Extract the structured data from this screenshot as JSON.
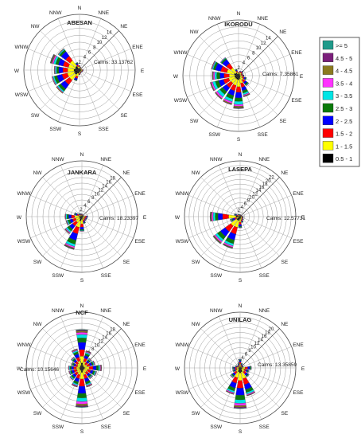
{
  "direction_labels": [
    "N",
    "NNE",
    "NE",
    "ENE",
    "E",
    "ESE",
    "SE",
    "SSE",
    "S",
    "SSW",
    "SW",
    "WSW",
    "W",
    "WNW",
    "NW",
    "NNW"
  ],
  "legend": {
    "bins": [
      ">= 5",
      "4.5 - 5",
      "4 - 4.5",
      "3.5 - 4",
      "3 - 3.5",
      "2.5 - 3",
      "2 - 2.5",
      "1.5 - 2",
      "1 - 1.5",
      "0.5 - 1"
    ],
    "colors": [
      "#1f9a8a",
      "#7a1f7a",
      "#8b7a1f",
      "#ff33ff",
      "#00e5e5",
      "#0a7a0a",
      "#0000ff",
      "#ff0000",
      "#ffff00",
      "#000000"
    ]
  },
  "chart_data": [
    {
      "type": "windrose",
      "title": "ABESAN",
      "calms_label": "Calms: 33.13762",
      "radial_ticks": [
        "2",
        "4",
        "6",
        "8",
        "10",
        "12",
        "14"
      ],
      "rmax": 14,
      "petals": {
        "N": [
          0,
          0,
          0,
          0,
          0,
          0,
          0.1,
          0.2,
          0.4,
          0.6
        ],
        "NNE": [
          0,
          0,
          0,
          0,
          0,
          0,
          0.1,
          0.1,
          0.3,
          0.4
        ],
        "NE": [
          0,
          0,
          0,
          0,
          0,
          0,
          0,
          0.1,
          0.2,
          0.3
        ],
        "ENE": [
          0,
          0,
          0,
          0,
          0,
          0,
          0,
          0.1,
          0.2,
          0.3
        ],
        "E": [
          0,
          0,
          0,
          0,
          0,
          0,
          0.1,
          0.2,
          0.3,
          0.5
        ],
        "ESE": [
          0,
          0,
          0,
          0,
          0,
          0,
          0.1,
          0.2,
          0.3,
          0.4
        ],
        "SE": [
          0,
          0,
          0,
          0,
          0,
          0,
          0.1,
          0.1,
          0.2,
          0.4
        ],
        "SSE": [
          0,
          0,
          0,
          0,
          0,
          0,
          0.1,
          0.2,
          0.3,
          0.4
        ],
        "S": [
          0,
          0,
          0,
          0,
          0,
          0,
          0.1,
          0.3,
          0.4,
          0.6
        ],
        "SSW": [
          0,
          0,
          0,
          0,
          0,
          0.2,
          0.5,
          0.6,
          0.9,
          1.0
        ],
        "SW": [
          0,
          0,
          0.2,
          0.2,
          0.4,
          0.8,
          1.5,
          1.6,
          2.0,
          1.6
        ],
        "WSW": [
          0,
          0,
          0.1,
          0.2,
          0.4,
          0.8,
          1.5,
          1.6,
          2.0,
          1.6
        ],
        "W": [
          0,
          0,
          0.1,
          0.2,
          0.4,
          0.6,
          1.2,
          1.4,
          1.8,
          1.6
        ],
        "WNW": [
          0.1,
          0.2,
          0.3,
          0.4,
          0.6,
          0.8,
          1.4,
          1.6,
          2.0,
          1.3
        ],
        "NW": [
          0,
          0,
          0.1,
          0.1,
          0.3,
          0.6,
          1.6,
          1.6,
          2.0,
          1.4
        ],
        "NNW": [
          0,
          0,
          0,
          0,
          0.1,
          0.2,
          0.4,
          0.5,
          0.6,
          0.5
        ]
      }
    },
    {
      "type": "windrose",
      "title": "IKORODU",
      "calms_label": "Calms: 7.35861",
      "radial_ticks": [
        "2",
        "4",
        "6",
        "8",
        "10",
        "12",
        "14"
      ],
      "rmax": 14,
      "petals": {
        "N": [
          0,
          0,
          0,
          0,
          0,
          0,
          0.1,
          0.2,
          0.3,
          0.4
        ],
        "NNE": [
          0,
          0,
          0,
          0,
          0,
          0,
          0.1,
          0.3,
          0.4,
          0.6
        ],
        "NE": [
          0,
          0,
          0,
          0,
          0,
          0.1,
          0.2,
          0.4,
          0.5,
          0.5
        ],
        "ENE": [
          0,
          0,
          0,
          0,
          0,
          0.1,
          0.1,
          0.3,
          0.4,
          0.4
        ],
        "E": [
          0,
          0,
          0,
          0,
          0,
          0.1,
          0.2,
          0.4,
          0.5,
          0.4
        ],
        "ESE": [
          0,
          0,
          0,
          0,
          0.1,
          0.2,
          0.4,
          0.5,
          0.7,
          0.5
        ],
        "SE": [
          0,
          0,
          0,
          0.1,
          0.2,
          0.4,
          0.6,
          0.8,
          1.0,
          0.6
        ],
        "SSE": [
          0,
          0.1,
          0.2,
          0.3,
          0.5,
          0.7,
          1.0,
          1.2,
          1.4,
          0.9
        ],
        "S": [
          0.1,
          0.2,
          0.4,
          0.5,
          0.9,
          1.0,
          1.6,
          1.6,
          2.0,
          1.2
        ],
        "SSW": [
          0,
          0.1,
          0.3,
          0.5,
          0.8,
          1.0,
          1.4,
          1.6,
          1.8,
          1.1
        ],
        "SW": [
          0,
          0.1,
          0.2,
          0.5,
          0.9,
          1.0,
          1.4,
          1.6,
          1.6,
          1.1
        ],
        "WSW": [
          0,
          0.1,
          0.2,
          0.4,
          0.8,
          1.0,
          1.4,
          1.6,
          1.8,
          1.1
        ],
        "W": [
          0,
          0.1,
          0.2,
          0.4,
          0.6,
          0.9,
          1.2,
          1.5,
          1.6,
          1.1
        ],
        "WNW": [
          0,
          0,
          0.1,
          0.2,
          0.3,
          0.6,
          1.6,
          1.8,
          2.2,
          1.3
        ],
        "NW": [
          0,
          0,
          0,
          0.1,
          0.2,
          0.4,
          1.4,
          1.6,
          1.8,
          1.0
        ],
        "NNW": [
          0,
          0,
          0,
          0,
          0,
          0.2,
          0.3,
          0.4,
          0.5,
          0.5
        ]
      }
    },
    {
      "type": "windrose",
      "title": "JANKARA",
      "calms_label": "Calms: 18.23397",
      "radial_ticks": [
        "2",
        "4",
        "6",
        "8",
        "10",
        "12",
        "14",
        "16",
        "18"
      ],
      "rmax": 18,
      "petals": {
        "N": [
          0,
          0,
          0,
          0,
          0,
          0,
          0.1,
          0.2,
          0.3,
          0.4
        ],
        "NNE": [
          0,
          0,
          0,
          0,
          0,
          0,
          0.1,
          0.2,
          0.2,
          0.3
        ],
        "NE": [
          0,
          0,
          0,
          0,
          0,
          0,
          0.1,
          0.1,
          0.2,
          0.3
        ],
        "ENE": [
          0,
          0,
          0,
          0,
          0,
          0,
          0.1,
          0.1,
          0.2,
          0.3
        ],
        "E": [
          0,
          0,
          0,
          0,
          0,
          0.1,
          0.3,
          0.6,
          0.7,
          0.4
        ],
        "ESE": [
          0,
          0,
          0,
          0,
          0,
          0.1,
          0.3,
          0.5,
          0.6,
          0.4
        ],
        "SE": [
          0,
          0,
          0,
          0,
          0,
          0.1,
          0.3,
          0.5,
          0.6,
          0.4
        ],
        "SSE": [
          0,
          0,
          0,
          0,
          0.1,
          0.2,
          0.4,
          0.6,
          0.8,
          0.5
        ],
        "S": [
          0,
          0,
          0,
          0.1,
          0.2,
          0.4,
          0.8,
          1.2,
          1.6,
          1.0
        ],
        "SSW": [
          0.1,
          0.2,
          0.3,
          0.5,
          0.9,
          1.4,
          2.4,
          2.4,
          2.4,
          1.6
        ],
        "SW": [
          0,
          0.1,
          0.2,
          0.3,
          0.6,
          0.9,
          1.4,
          1.6,
          1.6,
          1.0
        ],
        "WSW": [
          0,
          0,
          0.1,
          0.2,
          0.4,
          0.7,
          1.0,
          1.2,
          1.4,
          0.9
        ],
        "W": [
          0,
          0,
          0.1,
          0.2,
          0.4,
          0.6,
          1.0,
          1.2,
          1.6,
          1.0
        ],
        "WNW": [
          0,
          0,
          0,
          0.1,
          0.2,
          0.3,
          0.5,
          0.6,
          0.7,
          0.5
        ],
        "NW": [
          0,
          0,
          0,
          0,
          0.1,
          0.2,
          0.3,
          0.3,
          0.4,
          0.3
        ],
        "NNW": [
          0,
          0,
          0,
          0,
          0,
          0.1,
          0.2,
          0.2,
          0.3,
          0.3
        ]
      }
    },
    {
      "type": "windrose",
      "title": "LASEPA",
      "calms_label": "Calms: 12.57731",
      "radial_ticks": [
        "2",
        "4",
        "6",
        "8",
        "10",
        "12",
        "14",
        "16",
        "18",
        "20",
        "22"
      ],
      "rmax": 22,
      "petals": {
        "N": [
          0,
          0,
          0,
          0,
          0,
          0,
          0.1,
          0.2,
          0.3,
          0.3
        ],
        "NNE": [
          0,
          0,
          0,
          0,
          0,
          0,
          0.1,
          0.2,
          0.2,
          0.3
        ],
        "NE": [
          0,
          0,
          0,
          0,
          0,
          0,
          0.1,
          0.1,
          0.2,
          0.3
        ],
        "ENE": [
          0,
          0,
          0,
          0,
          0,
          0,
          0.1,
          0.2,
          0.2,
          0.3
        ],
        "E": [
          0,
          0,
          0,
          0,
          0,
          0.1,
          0.2,
          0.3,
          0.4,
          0.4
        ],
        "ESE": [
          0,
          0,
          0,
          0,
          0,
          0.1,
          0.2,
          0.3,
          0.4,
          0.4
        ],
        "SE": [
          0,
          0,
          0,
          0,
          0,
          0.1,
          0.3,
          0.4,
          0.5,
          0.5
        ],
        "SSE": [
          0,
          0,
          0,
          0,
          0.1,
          0.2,
          0.4,
          0.6,
          0.8,
          0.6
        ],
        "S": [
          0,
          0,
          0,
          0.1,
          0.2,
          0.4,
          0.8,
          1.0,
          1.4,
          1.0
        ],
        "SSW": [
          0.1,
          0.2,
          0.3,
          0.6,
          1.0,
          1.6,
          2.6,
          3.0,
          3.0,
          1.8
        ],
        "SW": [
          0.1,
          0.2,
          0.4,
          0.6,
          1.0,
          1.6,
          2.6,
          3.0,
          3.2,
          1.8
        ],
        "WSW": [
          0,
          0,
          0.1,
          0.2,
          0.3,
          0.5,
          0.8,
          0.9,
          1.0,
          0.7
        ],
        "W": [
          0.1,
          0.2,
          0.4,
          0.6,
          0.9,
          1.2,
          2.0,
          2.6,
          3.2,
          1.8
        ],
        "WNW": [
          0,
          0,
          0,
          0.1,
          0.2,
          0.3,
          0.4,
          0.5,
          0.7,
          0.5
        ],
        "NW": [
          0,
          0,
          0,
          0,
          0.1,
          0.1,
          0.2,
          0.3,
          0.4,
          0.3
        ],
        "NNW": [
          0,
          0,
          0,
          0,
          0,
          0.1,
          0.1,
          0.2,
          0.3,
          0.3
        ]
      }
    },
    {
      "type": "windrose",
      "title": "NCF",
      "calms_label": "Calms: 10.15646",
      "radial_ticks": [
        "2",
        "4",
        "6",
        "8",
        "10",
        "12",
        "14",
        "16",
        "18"
      ],
      "rmax": 18,
      "petals": {
        "N": [
          0.2,
          0.3,
          0.5,
          0.8,
          1.2,
          1.6,
          2.6,
          2.4,
          2.4,
          1.8
        ],
        "NNE": [
          0,
          0.1,
          0.2,
          0.3,
          0.5,
          0.7,
          1.0,
          1.2,
          1.4,
          1.0
        ],
        "NE": [
          0,
          0,
          0.1,
          0.2,
          0.3,
          0.5,
          0.7,
          0.9,
          1.0,
          0.7
        ],
        "ENE": [
          0,
          0,
          0.1,
          0.2,
          0.3,
          0.5,
          0.8,
          1.0,
          1.2,
          0.8
        ],
        "E": [
          0,
          0.1,
          0.2,
          0.3,
          0.5,
          0.8,
          1.2,
          1.4,
          1.6,
          1.0
        ],
        "ESE": [
          0,
          0,
          0.1,
          0.2,
          0.4,
          0.6,
          0.9,
          1.1,
          1.3,
          0.9
        ],
        "SE": [
          0,
          0,
          0.1,
          0.2,
          0.3,
          0.5,
          0.8,
          1.0,
          1.2,
          0.8
        ],
        "SSE": [
          0,
          0.1,
          0.2,
          0.3,
          0.5,
          0.8,
          1.2,
          1.4,
          1.6,
          1.0
        ],
        "S": [
          0.2,
          0.4,
          0.6,
          0.9,
          1.3,
          1.6,
          2.6,
          2.6,
          2.4,
          1.6
        ],
        "SSW": [
          0,
          0.1,
          0.2,
          0.3,
          0.5,
          0.8,
          1.2,
          1.4,
          1.6,
          1.0
        ],
        "SW": [
          0,
          0,
          0.1,
          0.2,
          0.4,
          0.6,
          0.9,
          1.1,
          1.3,
          0.9
        ],
        "WSW": [
          0,
          0,
          0.1,
          0.2,
          0.3,
          0.5,
          0.8,
          1.0,
          1.2,
          0.8
        ],
        "W": [
          0,
          0,
          0.1,
          0.2,
          0.3,
          0.5,
          0.8,
          1.0,
          1.2,
          0.8
        ],
        "WNW": [
          0,
          0,
          0.1,
          0.1,
          0.2,
          0.4,
          0.6,
          0.8,
          1.0,
          0.7
        ],
        "NW": [
          0,
          0,
          0.1,
          0.2,
          0.3,
          0.5,
          0.8,
          1.0,
          1.2,
          0.8
        ],
        "NNW": [
          0,
          0.1,
          0.2,
          0.3,
          0.5,
          0.8,
          1.2,
          1.4,
          1.6,
          1.0
        ]
      }
    },
    {
      "type": "windrose",
      "title": "UNILAG",
      "calms_label": "Calms: 13.35859",
      "radial_ticks": [
        "2",
        "4",
        "6",
        "8",
        "10",
        "12",
        "14",
        "16",
        "18",
        "20"
      ],
      "rmax": 20,
      "petals": {
        "N": [
          0,
          0,
          0,
          0.1,
          0.2,
          0.3,
          0.6,
          0.8,
          0.9,
          0.6
        ],
        "NNE": [
          0,
          0,
          0,
          0,
          0.1,
          0.2,
          0.3,
          0.4,
          0.5,
          0.4
        ],
        "NE": [
          0,
          0,
          0,
          0,
          0.1,
          0.1,
          0.2,
          0.3,
          0.4,
          0.3
        ],
        "ENE": [
          0,
          0,
          0,
          0,
          0.1,
          0.1,
          0.2,
          0.3,
          0.4,
          0.3
        ],
        "E": [
          0,
          0,
          0,
          0.1,
          0.2,
          0.4,
          0.8,
          1.0,
          1.2,
          0.8
        ],
        "ESE": [
          0,
          0,
          0,
          0.1,
          0.2,
          0.3,
          0.6,
          0.8,
          1.0,
          0.7
        ],
        "SE": [
          0,
          0,
          0,
          0.1,
          0.2,
          0.4,
          0.8,
          1.0,
          1.2,
          0.8
        ],
        "SSE": [
          0,
          0.1,
          0.2,
          0.4,
          0.7,
          1.2,
          2.0,
          2.4,
          2.8,
          1.6
        ],
        "S": [
          0.2,
          0.4,
          0.6,
          0.9,
          1.4,
          1.8,
          2.8,
          3.0,
          3.0,
          2.0
        ],
        "SSW": [
          0,
          0.1,
          0.2,
          0.4,
          0.7,
          1.2,
          2.0,
          2.2,
          2.4,
          1.6
        ],
        "SW": [
          0,
          0,
          0.1,
          0.2,
          0.3,
          0.5,
          0.8,
          1.0,
          1.2,
          0.8
        ],
        "WSW": [
          0,
          0,
          0,
          0.1,
          0.2,
          0.3,
          0.5,
          0.6,
          0.8,
          0.6
        ],
        "W": [
          0,
          0,
          0,
          0.1,
          0.2,
          0.3,
          0.5,
          0.6,
          0.8,
          0.6
        ],
        "WNW": [
          0,
          0,
          0,
          0,
          0.1,
          0.2,
          0.3,
          0.4,
          0.5,
          0.4
        ],
        "NW": [
          0,
          0,
          0,
          0,
          0.1,
          0.1,
          0.2,
          0.3,
          0.4,
          0.3
        ],
        "NNW": [
          0,
          0,
          0,
          0,
          0.1,
          0.2,
          0.3,
          0.4,
          0.5,
          0.4
        ]
      }
    }
  ]
}
